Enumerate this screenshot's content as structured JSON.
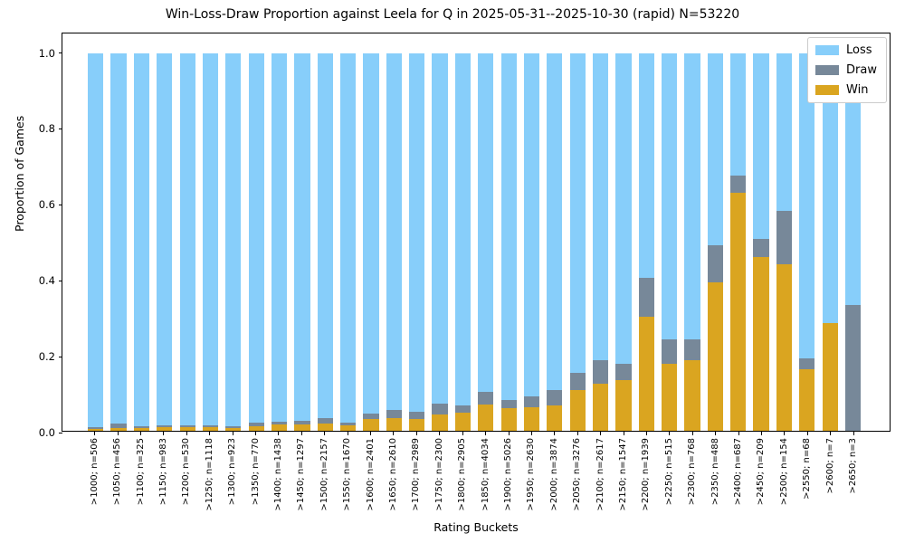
{
  "title": "Win-Loss-Draw Proportion against Leela for Q in 2025-05-31--2025-10-30 (rapid) N=53220",
  "axes": {
    "xlabel": "Rating Buckets",
    "ylabel": "Proportion of Games",
    "yticks": [
      "1.0",
      "0.8",
      "0.6",
      "0.4",
      "0.2",
      "0.0"
    ]
  },
  "legend": {
    "items": [
      {
        "label": "Loss",
        "color": "#87CEFA"
      },
      {
        "label": "Draw",
        "color": "#778899"
      },
      {
        "label": "Win",
        "color": "#DAA520"
      }
    ]
  },
  "colors": {
    "loss": "#87CEFA",
    "draw": "#778899",
    "win": "#DAA520"
  },
  "chart_data": {
    "type": "bar",
    "stacked": true,
    "title": "Win-Loss-Draw Proportion against Leela for Q in 2025-05-31--2025-10-30 (rapid) N=53220",
    "xlabel": "Rating Buckets",
    "ylabel": "Proportion of Games",
    "ylim": [
      0,
      1.05
    ],
    "grid": false,
    "legend_position": "upper right",
    "categories": [
      ">1000; n=506",
      ">1050; n=456",
      ">1100; n=325",
      ">1150; n=983",
      ">1200; n=530",
      ">1250; n=1118",
      ">1300; n=923",
      ">1350; n=770",
      ">1400; n=1438",
      ">1450; n=1297",
      ">1500; n=2157",
      ">1550; n=1670",
      ">1600; n=2401",
      ">1650; n=2610",
      ">1700; n=2989",
      ">1750; n=2300",
      ">1800; n=2905",
      ">1850; n=4034",
      ">1900; n=5026",
      ">1950; n=2630",
      ">2000; n=3874",
      ">2050; n=3276",
      ">2100; n=2617",
      ">2150; n=1547",
      ">2200; n=1939",
      ">2250; n=515",
      ">2300; n=768",
      ">2350; n=488",
      ">2400; n=687",
      ">2450; n=209",
      ">2500; n=154",
      ">2550; n=68",
      ">2600; n=7",
      ">2650; n=3"
    ],
    "series": [
      {
        "name": "Win",
        "color": "#DAA520",
        "values": [
          0.006,
          0.008,
          0.008,
          0.009,
          0.01,
          0.01,
          0.008,
          0.012,
          0.016,
          0.016,
          0.019,
          0.014,
          0.03,
          0.033,
          0.031,
          0.043,
          0.047,
          0.069,
          0.06,
          0.062,
          0.068,
          0.107,
          0.124,
          0.133,
          0.303,
          0.178,
          0.186,
          0.392,
          0.63,
          0.459,
          0.44,
          0.162,
          0.286,
          0.0
        ]
      },
      {
        "name": "Draw",
        "color": "#778899",
        "values": [
          0.004,
          0.011,
          0.005,
          0.005,
          0.005,
          0.005,
          0.004,
          0.01,
          0.008,
          0.011,
          0.015,
          0.008,
          0.016,
          0.021,
          0.02,
          0.03,
          0.019,
          0.034,
          0.022,
          0.03,
          0.04,
          0.046,
          0.064,
          0.044,
          0.103,
          0.063,
          0.055,
          0.1,
          0.046,
          0.048,
          0.143,
          0.029,
          0.0,
          0.333
        ]
      },
      {
        "name": "Loss",
        "color": "#87CEFA",
        "values": [
          0.99,
          0.981,
          0.987,
          0.986,
          0.985,
          0.985,
          0.988,
          0.978,
          0.976,
          0.973,
          0.966,
          0.978,
          0.954,
          0.946,
          0.949,
          0.927,
          0.934,
          0.897,
          0.918,
          0.908,
          0.892,
          0.847,
          0.812,
          0.823,
          0.594,
          0.759,
          0.759,
          0.508,
          0.324,
          0.493,
          0.417,
          0.809,
          0.714,
          0.667
        ]
      }
    ]
  }
}
